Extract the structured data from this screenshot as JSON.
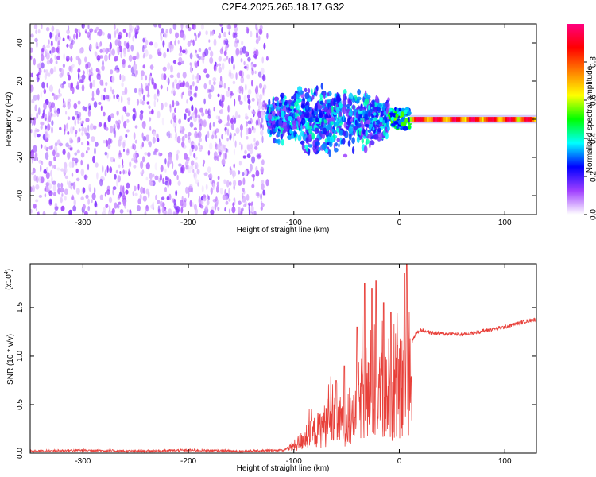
{
  "title": "C2E4.2025.265.18.17.G32",
  "chart_data": [
    {
      "type": "heatmap",
      "xlabel": "Height of straight line (km)",
      "ylabel": "Frequency (Hz)",
      "xlim": [
        -350,
        130
      ],
      "ylim": [
        -50,
        50
      ],
      "xticks": [
        -300,
        -200,
        -100,
        0,
        100
      ],
      "yticks": [
        -40,
        -20,
        0,
        20,
        40
      ],
      "colorbar": {
        "label": "Normalized spectral amplitude",
        "range": [
          0,
          1
        ],
        "ticks": [
          0.0,
          0.2,
          0.4,
          0.6,
          0.8
        ],
        "colors": [
          "#ffffff",
          "#a040ff",
          "#0000ff",
          "#00ffff",
          "#00ff00",
          "#ffff00",
          "#ff8000",
          "#ff0000",
          "#ff0080"
        ]
      },
      "regions": [
        {
          "x_range": [
            -350,
            -125
          ],
          "freq_spread": [
            -50,
            50
          ],
          "amplitude": 0.12
        },
        {
          "x_range": [
            -125,
            -10
          ],
          "freq_spread": [
            -15,
            20
          ],
          "amplitude": 0.25
        },
        {
          "x_range": [
            -10,
            10
          ],
          "freq_spread": [
            -5,
            5
          ],
          "amplitude": 0.4
        },
        {
          "x_range": [
            10,
            130
          ],
          "freq_spread": [
            -1,
            1
          ],
          "amplitude": 0.75
        }
      ]
    },
    {
      "type": "line",
      "xlabel": "Height of straight line (km)",
      "ylabel": "SNR (10 * v/v)",
      "multiplier_label": "(x10",
      "multiplier_exp": "4",
      "xlim": [
        -350,
        130
      ],
      "ylim": [
        0,
        1.95
      ],
      "xticks": [
        -300,
        -200,
        -100,
        0,
        100
      ],
      "yticks": [
        0.0,
        0.5,
        1.0,
        1.5
      ],
      "ytick_labels": [
        "0.0",
        "0.5",
        "1.0",
        "1.5"
      ],
      "color": "#e8403a",
      "series": [
        {
          "x": [
            -350,
            -300,
            -250,
            -200,
            -150,
            -110,
            -100,
            -90,
            -80,
            -70,
            -60,
            -50,
            -45,
            -40,
            -35,
            -30,
            -25,
            -20,
            -15,
            -10,
            -5,
            0,
            5,
            8,
            10,
            15,
            20,
            25,
            30,
            40,
            50,
            60,
            70,
            80,
            90,
            100,
            110,
            120,
            130
          ],
          "y": [
            0.02,
            0.03,
            0.02,
            0.03,
            0.02,
            0.03,
            0.1,
            0.2,
            0.3,
            0.4,
            0.45,
            0.45,
            0.4,
            0.7,
            0.8,
            0.8,
            0.75,
            0.85,
            0.8,
            0.85,
            0.8,
            0.9,
            0.95,
            1.15,
            1.1,
            1.22,
            1.27,
            1.26,
            1.24,
            1.23,
            1.23,
            1.22,
            1.24,
            1.26,
            1.28,
            1.3,
            1.33,
            1.36,
            1.38
          ],
          "y_peaks": [
            [
              -60,
              0.75
            ],
            [
              -52,
              0.9
            ],
            [
              -40,
              1.3
            ],
            [
              -33,
              1.75
            ],
            [
              -26,
              1.7
            ],
            [
              -22,
              1.78
            ],
            [
              -15,
              1.55
            ],
            [
              -8,
              1.45
            ],
            [
              5,
              1.85
            ],
            [
              7,
              1.95
            ]
          ]
        }
      ]
    }
  ]
}
